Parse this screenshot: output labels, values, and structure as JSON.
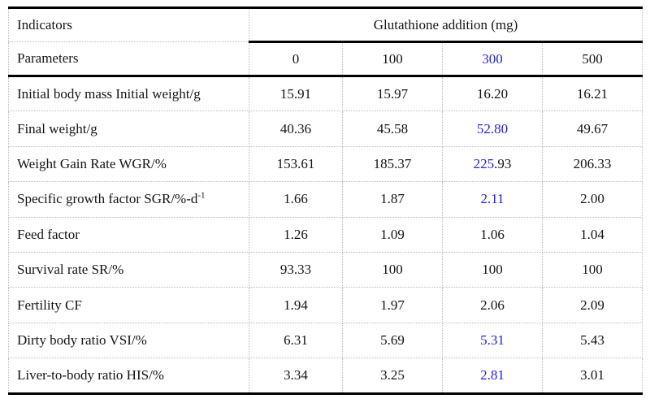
{
  "colors": {
    "accent_blue": "#2222DD",
    "grid_dotted": "#BCBCBC",
    "border_black": "#000000",
    "text": "#141414"
  },
  "table": {
    "header": {
      "indicators_label": "Indicators",
      "parameters_label": "Parameters",
      "group_title": "Glutathione addition (mg)",
      "doses": [
        {
          "label": "0",
          "blue": false
        },
        {
          "label": "100",
          "blue": false
        },
        {
          "label": "300",
          "blue": true
        },
        {
          "label": "500",
          "blue": false
        }
      ]
    },
    "rows": [
      {
        "label": "Initial body mass Initial weight/g",
        "label_sup": "",
        "values": [
          "15.91",
          "15.97",
          "16.20",
          "16.21"
        ]
      },
      {
        "label": "Final weight/g",
        "label_sup": "",
        "values": [
          "40.36",
          "45.58",
          {
            "text": "52.80",
            "blue": true
          },
          "49.67"
        ]
      },
      {
        "label": "Weight Gain Rate WGR/%",
        "label_sup": "",
        "values": [
          "153.61",
          "185.37",
          {
            "parts": [
              {
                "text": "225",
                "blue": true
              },
              {
                "text": ".93",
                "blue": false
              }
            ]
          },
          "206.33"
        ]
      },
      {
        "label": "Specific growth factor SGR/%-d",
        "label_sup": "-1",
        "values": [
          "1.66",
          "1.87",
          {
            "text": "2.11",
            "blue": true
          },
          "2.00"
        ]
      },
      {
        "label": "Feed factor",
        "label_sup": "",
        "values": [
          "1.26",
          "1.09",
          "1.06",
          "1.04"
        ]
      },
      {
        "label": "Survival rate SR/%",
        "label_sup": "",
        "values": [
          "93.33",
          "100",
          "100",
          "100"
        ]
      },
      {
        "label": "Fertility CF",
        "label_sup": "",
        "values": [
          "1.94",
          "1.97",
          "2.06",
          "2.09"
        ]
      },
      {
        "label": "Dirty body ratio VSI/%",
        "label_sup": "",
        "values": [
          "6.31",
          "5.69",
          {
            "text": "5.31",
            "blue": true
          },
          "5.43"
        ]
      },
      {
        "label": "Liver-to-body ratio HIS/%",
        "label_sup": "",
        "values": [
          "3.34",
          "3.25",
          {
            "text": "2.81",
            "blue": true
          },
          "3.01"
        ]
      }
    ]
  }
}
